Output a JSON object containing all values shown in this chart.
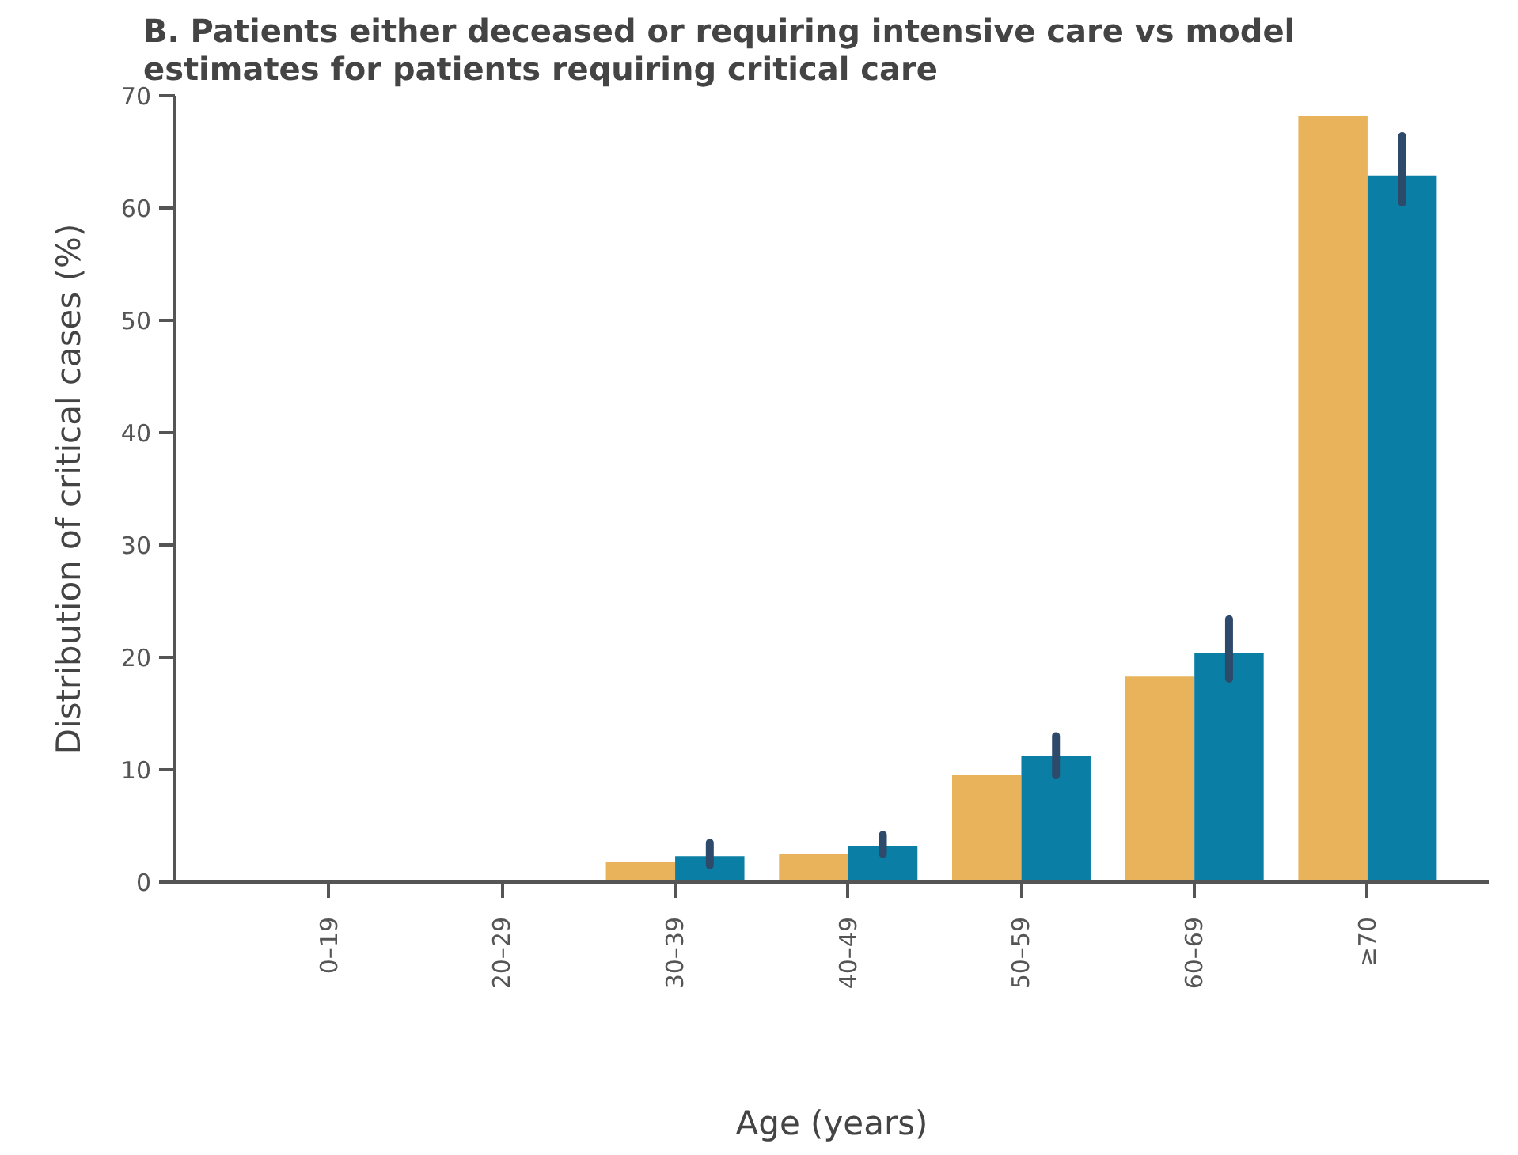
{
  "chart_data": {
    "type": "bar",
    "title": "B. Patients either deceased or requiring intensive care vs model estimates for patients requiring critical care",
    "xlabel": "Age (years)",
    "ylabel": "Distribution of critical cases (%)",
    "categories": [
      "0–19",
      "20–29",
      "30–39",
      "40–49",
      "50–59",
      "60–69",
      "≥70"
    ],
    "series": [
      {
        "color": "#e8b35a",
        "values": [
          0,
          0,
          1.8,
          2.5,
          9.5,
          18.3,
          68.2
        ]
      },
      {
        "color": "#0a7ea4",
        "values": [
          0,
          0,
          2.3,
          3.2,
          11.2,
          20.4,
          62.9
        ],
        "errors": [
          null,
          null,
          [
            1.5,
            3.5
          ],
          [
            2.5,
            4.2
          ],
          [
            9.5,
            13
          ],
          [
            18.1,
            23.4
          ],
          [
            60.5,
            66.4
          ]
        ]
      }
    ],
    "ylim": [
      0,
      70
    ],
    "yticks": [
      0,
      10,
      20,
      30,
      40,
      50,
      60,
      70
    ],
    "grid": false
  }
}
